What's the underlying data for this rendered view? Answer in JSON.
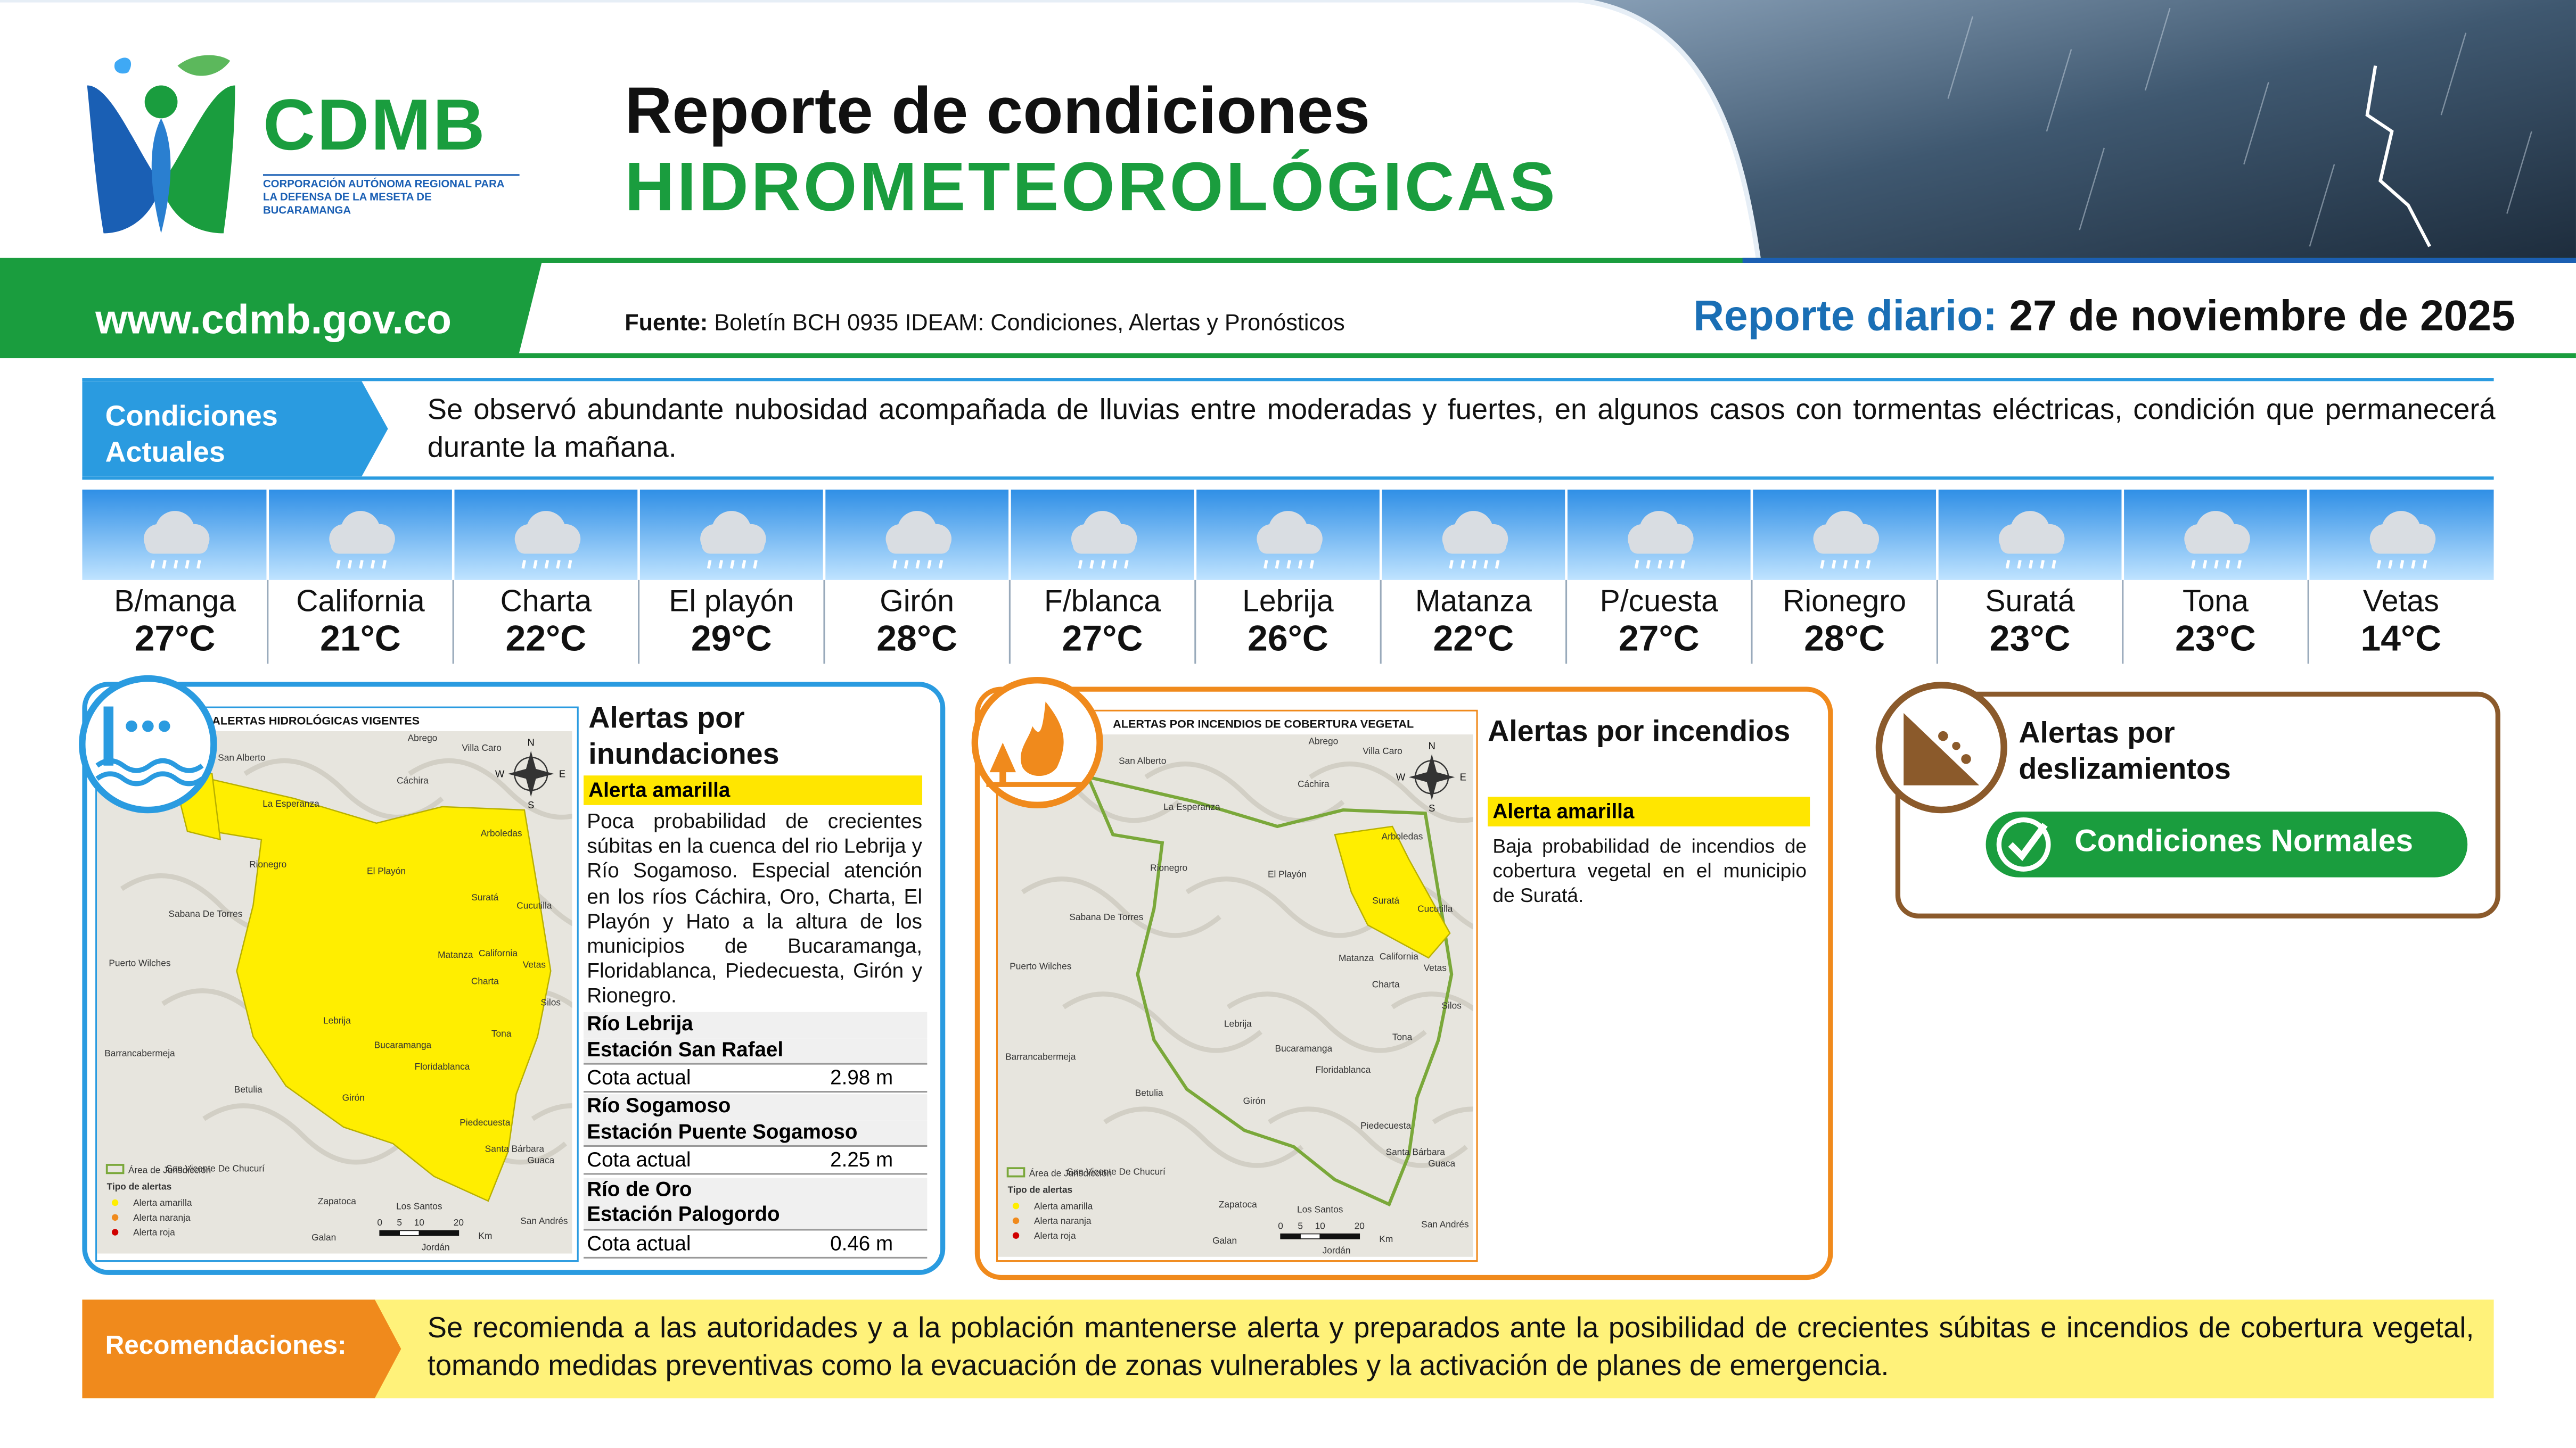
{
  "header": {
    "logo_name": "CDMB",
    "logo_subtitle": "CORPORACIÓN AUTÓNOMA REGIONAL PARA LA DEFENSA DE LA MESETA DE BUCARAMANGA",
    "title_line1": "Reporte de condiciones",
    "title_line2": "HIDROMETEOROLÓGICAS"
  },
  "subheader": {
    "website": "www.cdmb.gov.co",
    "source_label": "Fuente:",
    "source": "Boletín BCH 0935 IDEAM: Condiciones, Alertas y Pronósticos",
    "report_label": "Reporte diario:",
    "report_date": "27 de noviembre de 2025"
  },
  "conditions": {
    "label": "Condiciones Actuales",
    "text": "Se observó abundante nubosidad acompañada de lluvias entre moderadas y fuertes, en algunos casos con tormentas eléctricas, condición que permanecerá durante la mañana."
  },
  "forecast": [
    {
      "city": "B/manga",
      "temp": "27°C"
    },
    {
      "city": "California",
      "temp": "21°C"
    },
    {
      "city": "Charta",
      "temp": "22°C"
    },
    {
      "city": "El playón",
      "temp": "29°C"
    },
    {
      "city": "Girón",
      "temp": "28°C"
    },
    {
      "city": "F/blanca",
      "temp": "27°C"
    },
    {
      "city": "Lebrija",
      "temp": "26°C"
    },
    {
      "city": "Matanza",
      "temp": "22°C"
    },
    {
      "city": "P/cuesta",
      "temp": "27°C"
    },
    {
      "city": "Rionegro",
      "temp": "28°C"
    },
    {
      "city": "Suratá",
      "temp": "23°C"
    },
    {
      "city": "Tona",
      "temp": "23°C"
    },
    {
      "city": "Vetas",
      "temp": "14°C"
    }
  ],
  "flood_alert": {
    "map_title": "ALERTAS HIDROLÓGICAS VIGENTES",
    "title": "Alertas por inundaciones",
    "level": "Alerta amarilla",
    "text": "Poca probabilidad de crecientes súbitas en la cuenca del rio Lebrija y Río Sogamoso. Especial atención en los ríos Cáchira, Oro, Charta, El Playón y Hato a la altura de los municipios de Bucaramanga, Floridablanca, Piedecuesta, Girón y Rionegro.",
    "stations": [
      {
        "river": "Río Lebrija",
        "station": "Estación San Rafael",
        "label": "Cota actual",
        "value": "2.98 m"
      },
      {
        "river": "Río Sogamoso",
        "station": "Estación Puente Sogamoso",
        "label": "Cota actual",
        "value": "2.25 m"
      },
      {
        "river": "Río de Oro",
        "station": "Estación Palogordo",
        "label": "Cota actual",
        "value": "0.46 m"
      }
    ],
    "map_labels": [
      "Abrego",
      "Villa Caro",
      "San Alberto",
      "Cáchira",
      "La Esperanza",
      "Arboledas",
      "Rionegro",
      "El Playón",
      "Suratá",
      "Cucutilla",
      "Sabana De Torres",
      "Puerto Wilches",
      "Matanza",
      "California",
      "Vetas",
      "Charta",
      "Silos",
      "Lebrija",
      "Tona",
      "Bucaramanga",
      "Barrancabermeja",
      "Floridablanca",
      "Betulia",
      "Girón",
      "Piedecuesta",
      "Santa Bárbara",
      "Guaca",
      "San Vicente De Chucurí",
      "Zapatoca",
      "Los Santos",
      "Galan",
      "Jordán",
      "San Andrés"
    ],
    "compass": [
      "N",
      "E",
      "S",
      "W"
    ],
    "scale": [
      "0",
      "5",
      "10",
      "20",
      "Km"
    ],
    "legend": {
      "area": "Área de Jurisdicción",
      "title": "Tipo de alertas",
      "items": [
        "Alerta amarilla",
        "Alerta naranja",
        "Alerta roja"
      ]
    }
  },
  "fire_alert": {
    "map_title": "ALERTAS POR INCENDIOS DE COBERTURA VEGETAL",
    "title": "Alertas por incendios",
    "level": "Alerta amarilla",
    "text": "Baja probabilidad de incendios de cobertura vegetal en el municipio de Suratá.",
    "map_labels": [
      "Abrego",
      "Villa Caro",
      "San Alberto",
      "Cáchira",
      "La Esperanza",
      "Arboledas",
      "Rionegro",
      "El Playón",
      "Suratá",
      "Cucutilla",
      "Sabana De Torres",
      "Puerto Wilches",
      "Matanza",
      "California",
      "Vetas",
      "Charta",
      "Silos",
      "Lebrija",
      "Tona",
      "Bucaramanga",
      "Barrancabermeja",
      "Floridablanca",
      "Betulia",
      "Girón",
      "Piedecuesta",
      "Santa Bárbara",
      "Guaca",
      "San Vicente De Chucurí",
      "Zapatoca",
      "Los Santos",
      "Galan",
      "Jordán",
      "San Andrés"
    ],
    "compass": [
      "N",
      "E",
      "S",
      "W"
    ],
    "scale": [
      "0",
      "5",
      "10",
      "20",
      "Km"
    ],
    "legend": {
      "area": "Área de Jurisdicción",
      "title": "Tipo de alertas",
      "items": [
        "Alerta amarilla",
        "Alerta naranja",
        "Alerta roja"
      ]
    }
  },
  "landslide_alert": {
    "title": "Alertas por deslizamientos",
    "status": "Condiciones Normales"
  },
  "recommendations": {
    "label": "Recomendaciones:",
    "text": "Se recomienda a las autoridades y a la población mantenerse alerta y preparados ante la posibilidad de crecientes súbitas e incendios de cobertura vegetal, tomando medidas preventivas como la evacuación de zonas vulnerables y la activación de planes de emergencia."
  }
}
